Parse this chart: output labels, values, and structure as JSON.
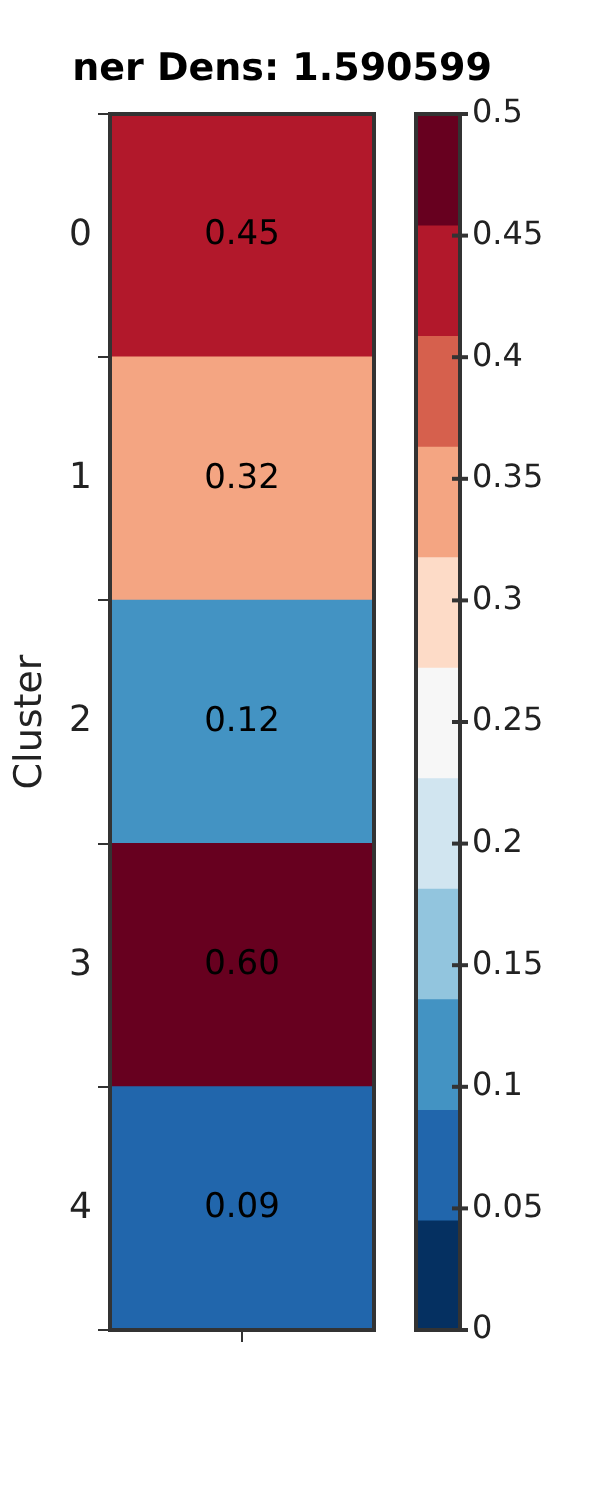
{
  "chart_data": {
    "type": "heatmap",
    "title": "ner Dens: 1.590599",
    "ylabel": "Cluster",
    "categories": [
      null
    ],
    "y_categories": [
      "0",
      "1",
      "2",
      "3",
      "4"
    ],
    "cells": [
      [
        0.45
      ],
      [
        0.32
      ],
      [
        0.12
      ],
      [
        0.6
      ],
      [
        0.09
      ]
    ],
    "cell_labels": [
      [
        "0.45"
      ],
      [
        "0.32"
      ],
      [
        "0.12"
      ],
      [
        "0.60"
      ],
      [
        "0.09"
      ]
    ],
    "clim": [
      0,
      0.5
    ],
    "cticks": [
      0,
      0.05,
      0.1,
      0.15,
      0.2,
      0.25,
      0.3,
      0.35,
      0.4,
      0.45,
      0.5
    ]
  }
}
